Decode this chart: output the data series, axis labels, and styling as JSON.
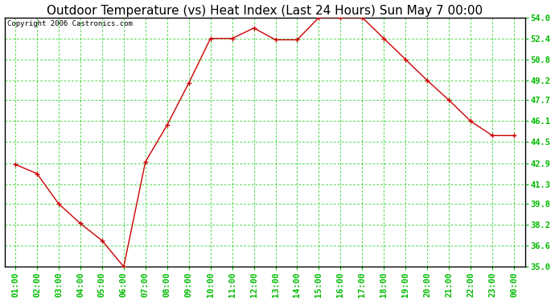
{
  "title": "Outdoor Temperature (vs) Heat Index (Last 24 Hours) Sun May 7 00:00",
  "copyright": "Copyright 2006 Castronics.com",
  "x_labels": [
    "01:00",
    "02:00",
    "03:00",
    "04:00",
    "05:00",
    "06:00",
    "07:00",
    "08:00",
    "09:00",
    "10:00",
    "11:00",
    "12:00",
    "13:00",
    "14:00",
    "15:00",
    "16:00",
    "17:00",
    "18:00",
    "19:00",
    "20:00",
    "21:00",
    "22:00",
    "23:00",
    "00:00"
  ],
  "y_values": [
    42.8,
    42.1,
    39.8,
    38.3,
    37.0,
    35.0,
    43.0,
    45.8,
    49.0,
    52.4,
    52.4,
    53.2,
    52.3,
    52.3,
    54.0,
    54.0,
    54.0,
    52.4,
    50.8,
    49.2,
    47.7,
    46.1,
    45.0,
    45.0
  ],
  "ylim": [
    35.0,
    54.0
  ],
  "y_ticks": [
    35.0,
    36.6,
    38.2,
    39.8,
    41.3,
    42.9,
    44.5,
    46.1,
    47.7,
    49.2,
    50.8,
    52.4,
    54.0
  ],
  "line_color": "#cc0000",
  "marker_color": "#cc0000",
  "bg_color": "#ffffff",
  "plot_bg_color": "#ffffff",
  "grid_color": "#00cc00",
  "border_color": "#000000",
  "title_fontsize": 11,
  "copyright_fontsize": 6.5,
  "tick_fontsize": 7.5,
  "tick_color": "#00bb00",
  "title_color": "#000000"
}
